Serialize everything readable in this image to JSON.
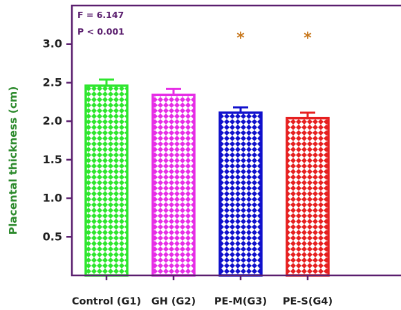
{
  "chart_data": {
    "type": "bar",
    "categories": [
      "Control (G1)",
      "GH (G2)",
      "PE-M(G3)",
      "PE-S(G4)"
    ],
    "values": [
      2.46,
      2.34,
      2.11,
      2.04
    ],
    "errors": [
      0.08,
      0.08,
      0.07,
      0.07
    ],
    "significance": [
      "",
      "",
      "*",
      "*"
    ],
    "ylabel": "Placental thickness (cm)",
    "xlabel": "",
    "ylim": [
      0,
      3.5
    ],
    "yticks": [
      "0.5",
      "1.0",
      "1.5",
      "2.0",
      "2.5",
      "3.0"
    ],
    "bar_colors": [
      "#2ee62e",
      "#e62ee6",
      "#1010cc",
      "#e62020"
    ],
    "axis_color": "#5a1e6e",
    "ylabel_color": "#2e8b2e",
    "stat_color": "#5a1e6e",
    "significance_color": "#c8781e",
    "grid": false,
    "legend": "none"
  },
  "annotations": {
    "f_stat": "F = 6.147",
    "p_value": "P < 0.001"
  }
}
